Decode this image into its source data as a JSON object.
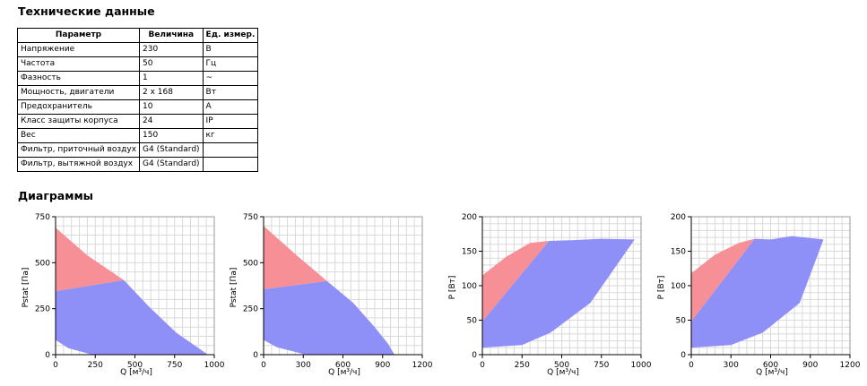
{
  "section_titles": {
    "tech": "Технические данные",
    "diagrams": "Диаграммы"
  },
  "table": {
    "headers": [
      "Параметр",
      "Величина",
      "Ед. измер."
    ],
    "rows": [
      [
        "Напряжение",
        "230",
        "В"
      ],
      [
        "Частота",
        "50",
        "Гц"
      ],
      [
        "Фазность",
        "1",
        "~"
      ],
      [
        "Мощность, двигатели",
        "2 x 168",
        "Вт"
      ],
      [
        "Предохранитель",
        "10",
        "А"
      ],
      [
        "Класс защиты корпуса",
        "24",
        "IP"
      ],
      [
        "Вес",
        "150",
        "кг"
      ],
      [
        "Фильтр, приточный воздух",
        "G4 (Standard)",
        ""
      ],
      [
        "Фильтр, вытяжной воздух",
        "G4 (Standard)",
        ""
      ]
    ]
  },
  "chart_data": [
    {
      "type": "area",
      "xlabel": "Q [м³/ч]",
      "ylabel": "Pstat [Па]",
      "xlim": [
        0,
        1000
      ],
      "ylim": [
        0,
        750
      ],
      "xticks": [
        "0",
        "250",
        "500",
        "750",
        "1000"
      ],
      "xtick_values": [
        0,
        250,
        500,
        750,
        1000
      ],
      "yticks": [
        "0",
        "250",
        "500",
        "750"
      ],
      "ytick_values": [
        0,
        250,
        500,
        750
      ],
      "red_region": [
        [
          0,
          690
        ],
        [
          200,
          540
        ],
        [
          430,
          405
        ],
        [
          0,
          345
        ]
      ],
      "blue_region": [
        [
          0,
          345
        ],
        [
          430,
          405
        ],
        [
          590,
          260
        ],
        [
          760,
          120
        ],
        [
          960,
          0
        ],
        [
          230,
          0
        ],
        [
          80,
          35
        ],
        [
          0,
          80
        ]
      ]
    },
    {
      "type": "area",
      "xlabel": "Q [м³/ч]",
      "ylabel": "Pstat [Па]",
      "xlim": [
        0,
        1200
      ],
      "ylim": [
        0,
        750
      ],
      "xticks": [
        "0",
        "300",
        "600",
        "900",
        "1200"
      ],
      "xtick_values": [
        0,
        300,
        600,
        900,
        1200
      ],
      "yticks": [
        "0",
        "250",
        "500",
        "750"
      ],
      "ytick_values": [
        0,
        250,
        500,
        750
      ],
      "red_region": [
        [
          0,
          700
        ],
        [
          250,
          540
        ],
        [
          480,
          400
        ],
        [
          0,
          355
        ]
      ],
      "blue_region": [
        [
          0,
          355
        ],
        [
          480,
          400
        ],
        [
          680,
          280
        ],
        [
          840,
          150
        ],
        [
          940,
          60
        ],
        [
          990,
          0
        ],
        [
          320,
          0
        ],
        [
          100,
          40
        ],
        [
          0,
          80
        ]
      ]
    },
    {
      "type": "area",
      "xlabel": "Q [м³/ч]",
      "ylabel": "P [Вт]",
      "xlim": [
        0,
        1000
      ],
      "ylim": [
        0,
        200
      ],
      "xticks": [
        "0",
        "250",
        "500",
        "750",
        "1000"
      ],
      "xtick_values": [
        0,
        250,
        500,
        750,
        1000
      ],
      "yticks": [
        "0",
        "50",
        "100",
        "150",
        "200"
      ],
      "ytick_values": [
        0,
        50,
        100,
        150,
        200
      ],
      "red_region": [
        [
          0,
          48
        ],
        [
          0,
          115
        ],
        [
          150,
          142
        ],
        [
          300,
          162
        ],
        [
          420,
          165
        ],
        [
          0,
          48
        ]
      ],
      "blue_region": [
        [
          0,
          48
        ],
        [
          420,
          165
        ],
        [
          560,
          166
        ],
        [
          750,
          168
        ],
        [
          960,
          167
        ],
        [
          680,
          75
        ],
        [
          430,
          32
        ],
        [
          250,
          14
        ],
        [
          0,
          10
        ]
      ]
    },
    {
      "type": "area",
      "xlabel": "Q [м³/ч]",
      "ylabel": "P [Вт]",
      "xlim": [
        0,
        1200
      ],
      "ylim": [
        0,
        200
      ],
      "xticks": [
        "0",
        "300",
        "600",
        "900",
        "1200"
      ],
      "xtick_values": [
        0,
        300,
        600,
        900,
        1200
      ],
      "yticks": [
        "0",
        "50",
        "100",
        "150",
        "200"
      ],
      "ytick_values": [
        0,
        50,
        100,
        150,
        200
      ],
      "red_region": [
        [
          0,
          48
        ],
        [
          0,
          118
        ],
        [
          180,
          145
        ],
        [
          360,
          162
        ],
        [
          480,
          168
        ],
        [
          0,
          48
        ]
      ],
      "blue_region": [
        [
          0,
          48
        ],
        [
          480,
          168
        ],
        [
          600,
          167
        ],
        [
          760,
          172
        ],
        [
          1000,
          167
        ],
        [
          820,
          75
        ],
        [
          540,
          32
        ],
        [
          300,
          14
        ],
        [
          0,
          10
        ]
      ]
    }
  ],
  "colors": {
    "red_fill": "#f69096",
    "blue_fill": "#8f8ff8"
  }
}
